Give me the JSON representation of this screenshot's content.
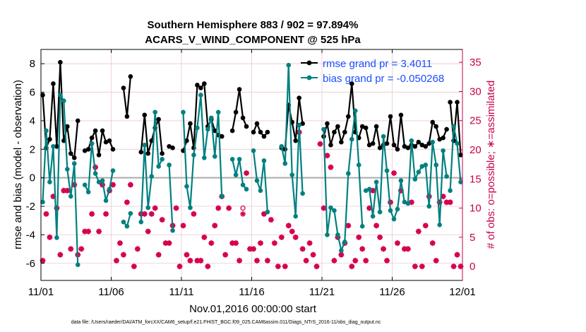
{
  "chart_data": {
    "type": "line",
    "title": "Southern Hemisphere 883 / 902 = 97.894%",
    "subtitle": "ACARS_V_WIND_COMPONENT @ 525 hPa",
    "xlabel": "Nov.01,2016 00:00:00 start",
    "ylabel": "rmse and bias (model - observation)",
    "y2label": "# of obs: o=possible; ∗=assimilated",
    "x_ticks": [
      "11/01",
      "11/06",
      "11/11",
      "11/16",
      "11/21",
      "11/26",
      "12/01"
    ],
    "y_ticks": [
      "-6",
      "-4",
      "-2",
      "0",
      "2",
      "4",
      "6",
      "8"
    ],
    "y2_ticks": [
      "0",
      "5",
      "10",
      "15",
      "20",
      "25",
      "30",
      "35"
    ],
    "xlim": [
      0,
      30
    ],
    "ylim": [
      -7.2,
      9.0
    ],
    "y2lim": [
      -2.4,
      37.2
    ],
    "grid": true,
    "legend_position": "top-right",
    "colors": {
      "rmse": "#000000",
      "bias": "#008080",
      "obs": "#d6004f",
      "zero_line": "#aaaaaa",
      "grid": "#e9c8d4",
      "axis_right": "#c8004e",
      "legend_text": "#1a4fff"
    },
    "series": [
      {
        "name": "rmse grand pr = 3.4011",
        "type": "line",
        "segments": [
          {
            "x": [
              0.125,
              0.375,
              0.625,
              0.875,
              1.125,
              1.375,
              1.625,
              1.875,
              2.125,
              2.375,
              2.625
            ],
            "y": [
              5.8,
              2.1,
              2.7,
              6.6,
              2.2,
              8.1,
              2.6,
              3.6,
              1.7,
              1.4,
              4.0
            ]
          },
          {
            "x": [
              3.125,
              3.375,
              3.625,
              3.875,
              4.125,
              4.375,
              4.625,
              4.875,
              5.125
            ],
            "y": [
              1.9,
              2.0,
              2.8,
              3.3,
              1.6,
              3.3,
              2.5,
              2.6,
              2.0
            ]
          },
          {
            "x": [
              5.875,
              6.125,
              6.375
            ],
            "y": [
              6.3,
              4.3,
              7.1
            ]
          },
          {
            "x": [
              7.125,
              7.375,
              7.625,
              7.875,
              8.125,
              8.375,
              8.625
            ],
            "y": [
              1.8,
              4.4,
              1.7,
              2.6,
              3.5,
              4.1,
              1.7
            ]
          },
          {
            "x": [
              9.125,
              9.375
            ],
            "y": [
              2.2,
              2.1
            ]
          },
          {
            "x": [
              10.125,
              10.375,
              10.625,
              10.875,
              11.125,
              11.375,
              11.625,
              11.875,
              12.125,
              12.375,
              12.625,
              12.875
            ],
            "y": [
              1.9,
              2.6,
              3.8,
              2.1,
              6.5,
              6.3,
              6.6,
              3.6,
              4.1,
              3.3,
              3.0,
              2.9
            ]
          },
          {
            "x": [
              13.625,
              13.875,
              14.125,
              14.375,
              14.625
            ],
            "y": [
              3.3,
              4.6,
              6.2,
              4.2,
              3.6
            ]
          },
          {
            "x": [
              15.125,
              15.375,
              15.625,
              15.875,
              16.125
            ],
            "y": [
              3.2,
              3.8,
              3.2,
              2.9,
              3.2
            ]
          },
          {
            "x": [
              17.125,
              17.375,
              17.625,
              17.875,
              18.125,
              18.375,
              18.625
            ],
            "y": [
              2.1,
              2.0,
              5.1,
              3.9,
              2.6,
              5.6,
              3.8
            ]
          },
          {
            "x": [
              20.125,
              20.375,
              20.625,
              20.875,
              21.125,
              21.375,
              21.625,
              21.875,
              22.125,
              22.375,
              22.625,
              22.875
            ],
            "y": [
              2.9,
              3.8,
              2.3,
              3.2,
              3.6,
              2.5,
              3.2,
              4.3,
              6.6,
              3.2,
              2.8,
              3.6
            ]
          },
          {
            "x": [
              23.125,
              23.375,
              23.625,
              23.875,
              24.125,
              24.375,
              24.625,
              24.875,
              25.125,
              25.375,
              25.625,
              25.875
            ],
            "y": [
              3.5,
              2.3,
              2.4,
              3.6,
              2.1,
              2.3,
              2.4,
              4.3,
              2.3,
              2.0,
              4.4,
              2.2
            ]
          },
          {
            "x": [
              26.125,
              26.375,
              26.625,
              26.875,
              27.125,
              27.375,
              27.625,
              27.875,
              28.125,
              28.375,
              28.625,
              28.875
            ],
            "y": [
              2.1,
              2.3,
              2.2,
              2.5,
              2.3,
              2.2,
              2.4,
              3.9,
              3.6,
              2.7,
              2.8,
              3.4
            ]
          },
          {
            "x": [
              29.125,
              29.375,
              29.625,
              29.875
            ],
            "y": [
              5.3,
              2.6,
              5.3,
              1.6
            ]
          }
        ]
      },
      {
        "name": "bias grand pr = -0.050268",
        "type": "line",
        "segments": [
          {
            "x": [
              0.125,
              0.375,
              0.625,
              0.875,
              1.125,
              1.375,
              1.625,
              1.875,
              2.125,
              2.375,
              2.625
            ],
            "y": [
              -1.7,
              3.3,
              -0.3,
              2.2,
              -4.2,
              5.8,
              5.4,
              0.6,
              -1.3,
              1.0,
              -6.1
            ]
          },
          {
            "x": [
              3.125,
              3.375,
              3.625,
              3.875,
              4.125,
              4.375,
              4.625,
              4.875,
              5.125
            ],
            "y": [
              -0.5,
              -1.0,
              2.4,
              0.3,
              -0.3,
              -0.2,
              -1.6,
              -0.8,
              0.5
            ]
          },
          {
            "x": [
              5.875,
              6.125,
              6.375
            ],
            "y": [
              -3.1,
              -3.4,
              -2.5
            ]
          },
          {
            "x": [
              7.125,
              7.375,
              7.625,
              7.875,
              8.125,
              8.375,
              8.625
            ],
            "y": [
              -3.1,
              2.3,
              -2.1,
              0.1,
              4.6,
              0.8,
              1.3
            ]
          },
          {
            "x": [
              9.125,
              9.375
            ],
            "y": [
              0.9,
              -3.7
            ]
          },
          {
            "x": [
              10.125,
              10.375,
              10.625,
              10.875,
              11.125,
              11.375,
              11.625,
              11.875,
              12.125,
              12.375,
              12.625,
              12.875
            ],
            "y": [
              4.6,
              -0.6,
              -2.1,
              1.6,
              3.5,
              5.8,
              1.4,
              3.4,
              4.2,
              1.5,
              4.6,
              -1.3
            ]
          },
          {
            "x": [
              13.625,
              13.875,
              14.125,
              14.375,
              14.625
            ],
            "y": [
              1.3,
              0.2,
              1.3,
              -0.5,
              -0.8
            ]
          },
          {
            "x": [
              15.125,
              15.375,
              15.625,
              15.875,
              16.125
            ],
            "y": [
              1.9,
              -0.2,
              -0.9,
              1.2,
              -2.4
            ]
          },
          {
            "x": [
              17.125,
              17.375,
              17.625,
              17.875,
              18.125,
              18.375,
              18.625
            ],
            "y": [
              2.2,
              1.0,
              7.9,
              0.2,
              -2.7,
              3.7,
              -1.1
            ]
          },
          {
            "x": [
              20.125,
              20.375,
              20.625,
              20.875,
              21.125,
              21.375,
              21.625,
              21.875,
              22.125,
              22.375,
              22.625,
              22.875
            ],
            "y": [
              3.4,
              -4.0,
              -2.1,
              -2.3,
              -4.0,
              -5.1,
              -4.5,
              0.3,
              2.7,
              4.7,
              0.9,
              -3.4
            ]
          },
          {
            "x": [
              23.125,
              23.375,
              23.625,
              23.875,
              24.125,
              24.375,
              24.625,
              24.875,
              25.125,
              25.375,
              25.625,
              25.875
            ],
            "y": [
              -0.9,
              -0.8,
              -2.7,
              -0.3,
              -2.4,
              2.9,
              0.5,
              -2.3,
              -2.9,
              -2.2,
              -0.2,
              -1.7
            ]
          },
          {
            "x": [
              26.125,
              26.375,
              26.625,
              26.875,
              27.125,
              27.375,
              27.625,
              27.875,
              28.125,
              28.375,
              28.625,
              28.875
            ],
            "y": [
              -1.8,
              2.6,
              -0.1,
              0.4,
              0.8,
              0.9,
              -2.0,
              2.5,
              0.9,
              -3.3,
              1.9,
              0.1
            ]
          },
          {
            "x": [
              29.125,
              29.375,
              29.625,
              29.875
            ],
            "y": [
              -0.9,
              3.6,
              2.4,
              -0.3
            ]
          }
        ]
      },
      {
        "name": "# of obs possible",
        "type": "scatter",
        "marker": "o",
        "x": [
          0.125,
          0.375,
          0.625,
          0.875,
          1.125,
          1.375,
          1.625,
          1.875,
          2.125,
          2.375,
          2.625,
          2.875,
          3.125,
          3.375,
          3.625,
          3.875,
          4.125,
          4.375,
          4.625,
          4.875,
          5.125,
          5.375,
          5.625,
          5.875,
          6.125,
          6.375,
          6.625,
          6.875,
          7.125,
          7.375,
          7.625,
          7.875,
          8.125,
          8.375,
          8.625,
          8.875,
          9.125,
          9.375,
          9.625,
          9.875,
          10.125,
          10.375,
          10.625,
          10.875,
          11.125,
          11.375,
          11.625,
          11.875,
          12.125,
          12.375,
          12.625,
          12.875,
          13.125,
          13.375,
          13.625,
          13.875,
          14.125,
          14.375,
          14.625,
          14.875,
          15.125,
          15.375,
          15.625,
          15.875,
          16.125,
          16.375,
          16.625,
          16.875,
          17.125,
          17.375,
          17.625,
          17.875,
          18.125,
          18.375,
          18.625,
          18.875,
          19.125,
          19.375,
          19.625,
          19.875,
          20.125,
          20.375,
          20.625,
          20.875,
          21.125,
          21.375,
          21.625,
          21.875,
          22.125,
          22.375,
          22.625,
          22.875,
          23.125,
          23.375,
          23.625,
          23.875,
          24.125,
          24.375,
          24.625,
          24.875,
          25.125,
          25.375,
          25.625,
          25.875,
          26.125,
          26.375,
          26.625,
          26.875,
          27.125,
          27.375,
          27.625,
          27.875,
          28.125,
          28.375,
          28.625,
          28.875,
          29.125,
          29.375,
          29.625,
          29.875
        ],
        "y": [
          1,
          9,
          5,
          12,
          10,
          2,
          13,
          13,
          3,
          14,
          2,
          3,
          6,
          6,
          9,
          17,
          6,
          14,
          9,
          13,
          14,
          1,
          4,
          2,
          11,
          14,
          0,
          3,
          9,
          9,
          6,
          9,
          10,
          2,
          8,
          4,
          4,
          7,
          10,
          0,
          7,
          2,
          1,
          9,
          1,
          1,
          5,
          0,
          4,
          7,
          10,
          12,
          2,
          10,
          4,
          4,
          1,
          10,
          16,
          3,
          3,
          1,
          4,
          9,
          1,
          8,
          4,
          0,
          5,
          0,
          7,
          6,
          5,
          23,
          3,
          1,
          4,
          2,
          0,
          21,
          10,
          19,
          17,
          1,
          5,
          2,
          4,
          7,
          0,
          1,
          5,
          3,
          1,
          10,
          13,
          7,
          5,
          3,
          1,
          11,
          16,
          4,
          13,
          3,
          3,
          11,
          0,
          6,
          0,
          7,
          12,
          4,
          1,
          11,
          12,
          11,
          11,
          0,
          2,
          0
        ]
      },
      {
        "name": "# of obs assimilated",
        "type": "scatter",
        "marker": "*",
        "x": [
          0.125,
          0.375,
          0.625,
          0.875,
          1.125,
          1.375,
          1.625,
          1.875,
          2.125,
          2.375,
          2.625,
          2.875,
          3.125,
          3.375,
          3.625,
          3.875,
          4.125,
          4.375,
          4.625,
          4.875,
          5.125,
          5.375,
          5.625,
          5.875,
          6.125,
          6.375,
          6.625,
          6.875,
          7.125,
          7.375,
          7.625,
          7.875,
          8.125,
          8.375,
          8.625,
          8.875,
          9.125,
          9.375,
          9.625,
          9.875,
          10.125,
          10.375,
          10.625,
          10.875,
          11.125,
          11.375,
          11.625,
          11.875,
          12.125,
          12.375,
          12.625,
          12.875,
          13.125,
          13.375,
          13.625,
          13.875,
          14.125,
          14.375,
          14.625,
          14.875,
          15.125,
          15.375,
          15.625,
          15.875,
          16.125,
          16.375,
          16.625,
          16.875,
          17.125,
          17.375,
          17.625,
          17.875,
          18.125,
          18.375,
          18.625,
          18.875,
          19.125,
          19.375,
          19.625,
          19.875,
          20.125,
          20.375,
          20.625,
          20.875,
          21.125,
          21.375,
          21.625,
          21.875,
          22.125,
          22.375,
          22.625,
          22.875,
          23.125,
          23.375,
          23.625,
          23.875,
          24.125,
          24.375,
          24.625,
          24.875,
          25.125,
          25.375,
          25.625,
          25.875,
          26.125,
          26.375,
          26.625,
          26.875,
          27.125,
          27.375,
          27.625,
          27.875,
          28.125,
          28.375,
          28.625,
          28.875,
          29.125,
          29.375,
          29.625,
          29.875
        ],
        "y": [
          1,
          9,
          5,
          12,
          10,
          2,
          13,
          13,
          3,
          14,
          2,
          3,
          6,
          6,
          9,
          17,
          6,
          14,
          9,
          13,
          14,
          1,
          4,
          2,
          11,
          14,
          0,
          3,
          9,
          9,
          6,
          9,
          10,
          2,
          8,
          4,
          4,
          7,
          10,
          0,
          7,
          2,
          1,
          9,
          1,
          1,
          5,
          0,
          4,
          7,
          10,
          12,
          2,
          10,
          4,
          4,
          1,
          9,
          16,
          3,
          3,
          1,
          4,
          9,
          1,
          8,
          4,
          0,
          5,
          0,
          7,
          6,
          5,
          23,
          3,
          1,
          4,
          2,
          0,
          21,
          10,
          19,
          17,
          1,
          5,
          2,
          4,
          7,
          0,
          1,
          5,
          3,
          1,
          10,
          13,
          7,
          5,
          3,
          1,
          11,
          16,
          4,
          13,
          3,
          3,
          11,
          0,
          6,
          0,
          7,
          12,
          4,
          1,
          11,
          12,
          11,
          11,
          0,
          2,
          0
        ]
      }
    ],
    "footer": "data file: /Users/raeder/DAI/ATM_forcXX/CAM6_setup/f.e21.FHIST_BGC.f09_025.CAM6assim.011/Diags_NTrS_2016-11/obs_diag_output.nc"
  }
}
